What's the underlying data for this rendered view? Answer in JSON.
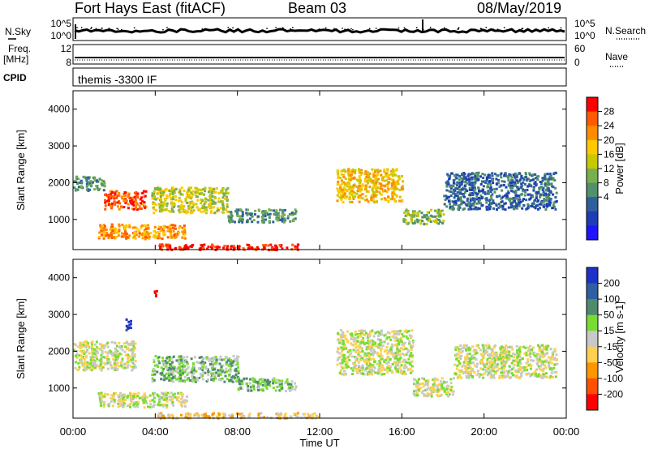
{
  "header": {
    "station": "Fort Hays East (fitACF)",
    "beam": "Beam 03",
    "date": "08/May/2019"
  },
  "panel_labels": {
    "nsky": "N.Sky",
    "nsearch": "N.Search",
    "freq_line1": "Freq.",
    "freq_line2": "[MHz]",
    "nave": "Nave",
    "cpid": "CPID",
    "cpid_value": "themis -3300 IF"
  },
  "panel_ticks": {
    "nsky_left": [
      "10^5",
      "10^0"
    ],
    "nsky_right": [
      "10^5",
      "10^0"
    ],
    "freq_left": [
      "12",
      "8"
    ],
    "freq_right": [
      "60",
      "0"
    ]
  },
  "colorbars": {
    "power": {
      "label": "Power [dB]",
      "ticks": [
        "28",
        "24",
        "20",
        "16",
        "12",
        "8",
        "4"
      ],
      "colors": [
        "#ff0000",
        "#ff5a00",
        "#ff8c00",
        "#ffc800",
        "#c8c800",
        "#78b050",
        "#50906a",
        "#2e5f9c",
        "#1e3cb4",
        "#1e14ff"
      ]
    },
    "velocity": {
      "label": "Velocity [m s-1]",
      "ticks": [
        "200",
        "100",
        "50",
        "15",
        "-15",
        "-50",
        "-100",
        "-200"
      ],
      "colors": [
        "#1e32c8",
        "#2e5fa0",
        "#4f8a6e",
        "#78dc32",
        "#c8c8c8",
        "#ffd050",
        "#ff9600",
        "#ff5000",
        "#ff0000"
      ]
    }
  },
  "chart_data": [
    {
      "type": "heatmap",
      "title": "Power",
      "ylabel": "Slant Range [km]",
      "xlabel": "Time UT",
      "x_ticks": [
        "00:00",
        "04:00",
        "08:00",
        "12:00",
        "16:00",
        "20:00",
        "00:00"
      ],
      "y_ticks": [
        "1000",
        "2000",
        "3000",
        "4000"
      ],
      "xlim": [
        0,
        24
      ],
      "ylim": [
        180,
        4500
      ],
      "bands": [
        {
          "t": [
            0.0,
            1.5
          ],
          "r": [
            1800,
            2200
          ],
          "level": 6
        },
        {
          "t": [
            1.5,
            3.5
          ],
          "r": [
            1300,
            1800
          ],
          "level": 1
        },
        {
          "t": [
            3.8,
            7.5
          ],
          "r": [
            1200,
            1900
          ],
          "level": 4
        },
        {
          "t": [
            7.5,
            10.8
          ],
          "r": [
            950,
            1300
          ],
          "level": 6
        },
        {
          "t": [
            1.2,
            5.5
          ],
          "r": [
            500,
            900
          ],
          "level": 2
        },
        {
          "t": [
            4.0,
            11.0
          ],
          "r": [
            200,
            350
          ],
          "level": 0
        },
        {
          "t": [
            12.8,
            16.0
          ],
          "r": [
            1500,
            2400
          ],
          "level": 3
        },
        {
          "t": [
            16.0,
            18.0
          ],
          "r": [
            900,
            1300
          ],
          "level": 5
        },
        {
          "t": [
            18.0,
            23.5
          ],
          "r": [
            1300,
            2300
          ],
          "level": 7
        }
      ]
    },
    {
      "type": "heatmap",
      "title": "Velocity",
      "ylabel": "Slant Range [km]",
      "xlabel": "Time UT",
      "x_ticks": [
        "00:00",
        "04:00",
        "08:00",
        "12:00",
        "16:00",
        "20:00",
        "00:00"
      ],
      "y_ticks": [
        "1000",
        "2000",
        "3000",
        "4000"
      ],
      "xlim": [
        0,
        24
      ],
      "ylim": [
        180,
        4500
      ],
      "bands": [
        {
          "t": [
            0.0,
            3.0
          ],
          "r": [
            1500,
            2300
          ],
          "level": 4
        },
        {
          "t": [
            3.8,
            8.0
          ],
          "r": [
            1200,
            1900
          ],
          "level": 3
        },
        {
          "t": [
            8.0,
            10.8
          ],
          "r": [
            950,
            1300
          ],
          "level": 3
        },
        {
          "t": [
            1.2,
            5.5
          ],
          "r": [
            500,
            900
          ],
          "level": 4
        },
        {
          "t": [
            4.0,
            12.0
          ],
          "r": [
            200,
            350
          ],
          "level": 5
        },
        {
          "t": [
            12.8,
            16.5
          ],
          "r": [
            1400,
            2600
          ],
          "level": 4
        },
        {
          "t": [
            16.5,
            18.5
          ],
          "r": [
            800,
            1300
          ],
          "level": 4
        },
        {
          "t": [
            18.5,
            23.5
          ],
          "r": [
            1300,
            2200
          ],
          "level": 4
        },
        {
          "t": [
            2.5,
            2.8
          ],
          "r": [
            2600,
            2900
          ],
          "level": 0
        },
        {
          "t": [
            3.9,
            4.1
          ],
          "r": [
            3500,
            3700
          ],
          "level": 8
        }
      ]
    }
  ]
}
